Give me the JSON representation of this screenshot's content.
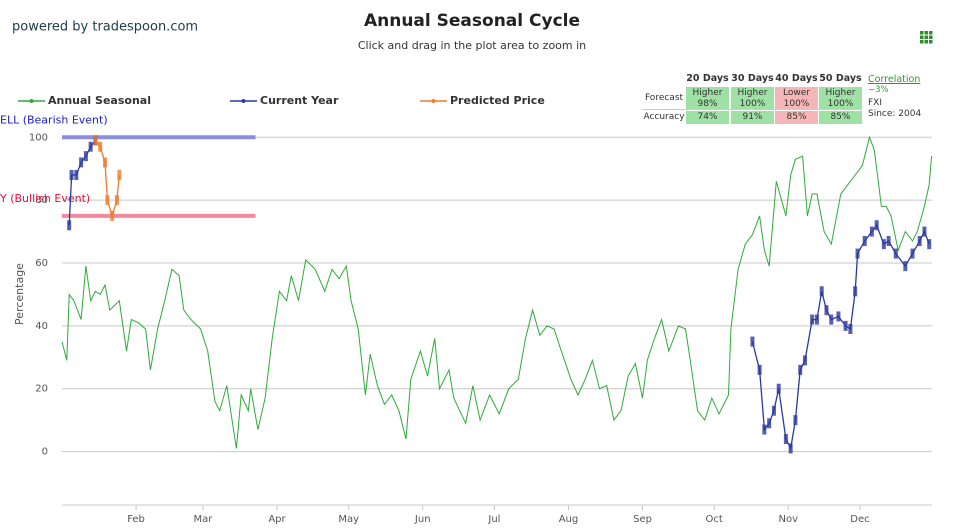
{
  "brand": "powered by tradespoon.com",
  "chart_data": {
    "type": "line",
    "title": "Annual Seasonal Cycle",
    "subtitle": "Click and drag in the plot area to zoom in",
    "ylabel": "Percentage",
    "xlim": [
      0,
      365
    ],
    "ylim": [
      -17,
      102
    ],
    "yticks": [
      0,
      20,
      40,
      60,
      80,
      100
    ],
    "xticks": [
      {
        "value": 31,
        "label": "Feb"
      },
      {
        "value": 59,
        "label": "Mar"
      },
      {
        "value": 90,
        "label": "Apr"
      },
      {
        "value": 120,
        "label": "May"
      },
      {
        "value": 151,
        "label": "Jun"
      },
      {
        "value": 181,
        "label": "Jul"
      },
      {
        "value": 212,
        "label": "Aug"
      },
      {
        "value": 243,
        "label": "Sep"
      },
      {
        "value": 273,
        "label": "Oct"
      },
      {
        "value": 304,
        "label": "Nov"
      },
      {
        "value": 334,
        "label": "Dec"
      }
    ],
    "grid": true,
    "series": [
      {
        "name": "Annual Seasonal",
        "color": "#2eaa3a",
        "x": [
          0,
          2,
          3,
          5,
          8,
          10,
          12,
          14,
          16,
          18,
          20,
          24,
          27,
          29,
          32,
          35,
          37,
          40,
          43,
          46,
          49,
          51,
          54,
          58,
          61,
          64,
          66,
          69,
          73,
          75,
          78,
          79,
          82,
          85,
          88,
          91,
          94,
          96,
          99,
          102,
          106,
          110,
          113,
          116,
          119,
          121,
          124,
          127,
          129,
          132,
          135,
          138,
          141,
          144,
          146,
          150,
          153,
          156,
          158,
          162,
          164,
          169,
          172,
          175,
          179,
          183,
          187,
          191,
          194,
          197,
          200,
          203,
          206,
          209,
          213,
          216,
          219,
          222,
          225,
          228,
          231,
          234,
          237,
          240,
          243,
          245,
          248,
          251,
          254,
          258,
          261,
          263,
          266,
          269,
          272,
          275,
          279,
          280,
          283,
          286,
          289,
          292,
          294,
          296,
          299,
          303,
          305,
          307,
          310,
          312,
          314,
          316,
          319,
          322,
          326,
          329,
          332,
          335,
          338,
          340,
          343,
          345,
          347,
          350,
          353,
          356,
          358,
          361,
          363,
          364
        ],
        "values": [
          35,
          29,
          50,
          48,
          42,
          59,
          48,
          51,
          50,
          53,
          45,
          48,
          32,
          42,
          41,
          39,
          26,
          39,
          48,
          58,
          56,
          45,
          42,
          39,
          32,
          16,
          13,
          21,
          1,
          18,
          13,
          20,
          7,
          17,
          36,
          51,
          48,
          56,
          48,
          61,
          58,
          51,
          58,
          55,
          59,
          48,
          39,
          18,
          31,
          21,
          15,
          18,
          13,
          4,
          23,
          32,
          24,
          36,
          20,
          26,
          17,
          9,
          21,
          10,
          18,
          12,
          20,
          23,
          36,
          45,
          37,
          40,
          39,
          32,
          23,
          18,
          23,
          29,
          20,
          21,
          10,
          13,
          24,
          28,
          17,
          29,
          36,
          42,
          32,
          40,
          39,
          29,
          13,
          10,
          17,
          12,
          18,
          39,
          58,
          66,
          69,
          75,
          64,
          59,
          86,
          75,
          88,
          93,
          94,
          75,
          82,
          82,
          70,
          66,
          82,
          85,
          88,
          91,
          100,
          96,
          78,
          78,
          75,
          64,
          70,
          67,
          70,
          78,
          85,
          94
        ]
      },
      {
        "name": "Current Year",
        "color": "#2a3a9c",
        "x": [
          3,
          4,
          6,
          8,
          10,
          12,
          14,
          150,
          289,
          292,
          294,
          296,
          298,
          300,
          303,
          305,
          307,
          309,
          311,
          314,
          316,
          318,
          320,
          322,
          325,
          328,
          330,
          332,
          333,
          336,
          339,
          341,
          344,
          346,
          349,
          353,
          356,
          359,
          361,
          363
        ],
        "values": [
          72,
          88,
          88,
          92,
          94,
          97,
          99,
          null,
          35,
          26,
          7,
          9,
          13,
          20,
          4,
          1,
          10,
          26,
          29,
          42,
          42,
          51,
          45,
          42,
          43,
          40,
          39,
          51,
          63,
          67,
          70,
          72,
          66,
          67,
          63,
          59,
          63,
          67,
          70,
          66
        ]
      },
      {
        "name": "Predicted Price",
        "color": "#f07a2a",
        "x": [
          14,
          16,
          18,
          19,
          21,
          23,
          24
        ],
        "values": [
          99,
          97,
          92,
          80,
          75,
          80,
          88
        ]
      }
    ],
    "annotations": [
      {
        "label": "ELL (Bearish Event)",
        "value": 100,
        "x_end": 81,
        "color": "#8a8ee0",
        "text_color": "#2020c0"
      },
      {
        "label": "Y (Bullish Event)",
        "value": 75,
        "x_end": 81,
        "color": "#f08a9a",
        "text_color": "#e0103a"
      }
    ]
  },
  "forecast_table": {
    "headers": [
      "20 Days",
      "30 Days",
      "40 Days",
      "50 Days"
    ],
    "rows": [
      {
        "label": "Forecast",
        "cells": [
          {
            "text": "Higher",
            "value": "98%",
            "color": "#9fe0a4"
          },
          {
            "text": "Higher",
            "value": "100%",
            "color": "#9fe0a4"
          },
          {
            "text": "Lower",
            "value": "100%",
            "color": "#f4b6b6"
          },
          {
            "text": "Higher",
            "value": "100%",
            "color": "#9fe0a4"
          }
        ]
      },
      {
        "label": "Accuracy",
        "cells": [
          {
            "value": "74%",
            "color": "#9fe0a4"
          },
          {
            "value": "91%",
            "color": "#9fe0a4"
          },
          {
            "value": "85%",
            "color": "#f4b6b6"
          },
          {
            "value": "85%",
            "color": "#9fe0a4"
          }
        ]
      }
    ],
    "correlation": {
      "label": "Correlation",
      "value": "−3%",
      "symbol": "FXI",
      "since": "Since: 2004"
    }
  }
}
